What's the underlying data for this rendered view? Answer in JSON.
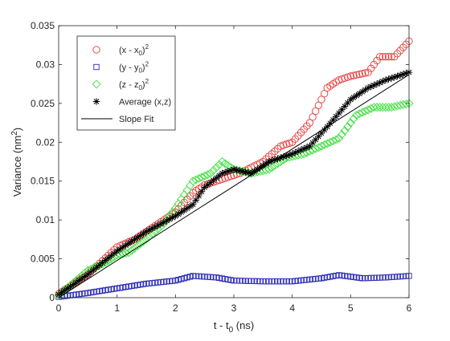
{
  "chart_data": {
    "type": "scatter",
    "xlabel_main": "t - t",
    "xlabel_sub": "0",
    "xlabel_unit": " (ns)",
    "ylabel_main": "Variance (nm",
    "ylabel_sup": "2",
    "ylabel_end": ")",
    "xlim": [
      0,
      6
    ],
    "ylim": [
      0,
      0.035
    ],
    "x_ticks": [
      0,
      1,
      2,
      3,
      4,
      5,
      6
    ],
    "x_tick_labels": [
      "0",
      "1",
      "2",
      "3",
      "4",
      "5",
      "6"
    ],
    "y_ticks": [
      0,
      0.005,
      0.01,
      0.015,
      0.02,
      0.025,
      0.03,
      0.035
    ],
    "y_tick_labels": [
      "0",
      "0.005",
      "0.01",
      "0.015",
      "0.02",
      "0.025",
      "0.03",
      "0.035"
    ],
    "grid": false,
    "legend_position": "top-left",
    "legend": [
      {
        "var": "x",
        "marker": "circle",
        "color": "#e83a3a",
        "pre": "(x - x",
        "sub": "0",
        "post": ")",
        "sup": "2",
        "plain": ""
      },
      {
        "var": "y",
        "marker": "square",
        "color": "#2a2ab5",
        "pre": "(y - y",
        "sub": "0",
        "post": ")",
        "sup": "2",
        "plain": ""
      },
      {
        "var": "z",
        "marker": "diamond",
        "color": "#3ae03a",
        "pre": "(z - z",
        "sub": "0",
        "post": ")",
        "sup": "2",
        "plain": ""
      },
      {
        "var": "avg",
        "marker": "asterisk",
        "color": "#000000",
        "pre": "",
        "sub": "",
        "post": "",
        "sup": "",
        "plain": "Average (x,z)"
      },
      {
        "var": "fit",
        "marker": "line",
        "color": "#000000",
        "pre": "",
        "sub": "",
        "post": "",
        "sup": "",
        "plain": "Slope Fit"
      }
    ],
    "series_knots": {
      "x": [
        [
          0,
          0.0005
        ],
        [
          0.5,
          0.003
        ],
        [
          1.0,
          0.0065
        ],
        [
          1.3,
          0.0075
        ],
        [
          1.6,
          0.009
        ],
        [
          2.0,
          0.011
        ],
        [
          2.3,
          0.0135
        ],
        [
          2.5,
          0.0145
        ],
        [
          2.7,
          0.015
        ],
        [
          2.9,
          0.0155
        ],
        [
          3.1,
          0.016
        ],
        [
          3.5,
          0.0175
        ],
        [
          3.8,
          0.0195
        ],
        [
          4.0,
          0.02
        ],
        [
          4.3,
          0.0225
        ],
        [
          4.6,
          0.027
        ],
        [
          4.8,
          0.028
        ],
        [
          5.0,
          0.0285
        ],
        [
          5.3,
          0.029
        ],
        [
          5.5,
          0.031
        ],
        [
          5.75,
          0.031
        ],
        [
          6.0,
          0.033
        ]
      ],
      "y": [
        [
          0,
          0.0001
        ],
        [
          0.5,
          0.0006
        ],
        [
          1.0,
          0.0012
        ],
        [
          1.5,
          0.0018
        ],
        [
          2.0,
          0.0022
        ],
        [
          2.3,
          0.0028
        ],
        [
          2.7,
          0.0026
        ],
        [
          3.0,
          0.0022
        ],
        [
          3.5,
          0.0021
        ],
        [
          4.0,
          0.0021
        ],
        [
          4.5,
          0.0025
        ],
        [
          4.8,
          0.0029
        ],
        [
          5.2,
          0.0025
        ],
        [
          5.6,
          0.0026
        ],
        [
          6.0,
          0.0028
        ]
      ],
      "z": [
        [
          0,
          0.0003
        ],
        [
          0.5,
          0.0035
        ],
        [
          0.8,
          0.0045
        ],
        [
          1.0,
          0.0055
        ],
        [
          1.2,
          0.0058
        ],
        [
          1.5,
          0.0075
        ],
        [
          1.8,
          0.0095
        ],
        [
          2.0,
          0.0115
        ],
        [
          2.3,
          0.015
        ],
        [
          2.6,
          0.016
        ],
        [
          2.8,
          0.0175
        ],
        [
          3.0,
          0.0165
        ],
        [
          3.3,
          0.016
        ],
        [
          3.6,
          0.0165
        ],
        [
          3.9,
          0.018
        ],
        [
          4.2,
          0.0185
        ],
        [
          4.5,
          0.0195
        ],
        [
          4.8,
          0.0205
        ],
        [
          5.1,
          0.0235
        ],
        [
          5.4,
          0.0245
        ],
        [
          5.7,
          0.0245
        ],
        [
          6.0,
          0.025
        ]
      ],
      "avg": [
        [
          0,
          0.0004
        ],
        [
          0.5,
          0.003
        ],
        [
          1.0,
          0.006
        ],
        [
          1.5,
          0.0085
        ],
        [
          2.0,
          0.0105
        ],
        [
          2.3,
          0.012
        ],
        [
          2.5,
          0.0142
        ],
        [
          2.8,
          0.016
        ],
        [
          3.0,
          0.0165
        ],
        [
          3.3,
          0.016
        ],
        [
          3.6,
          0.0175
        ],
        [
          4.0,
          0.0185
        ],
        [
          4.3,
          0.0195
        ],
        [
          4.6,
          0.022
        ],
        [
          5.0,
          0.0255
        ],
        [
          5.3,
          0.027
        ],
        [
          5.6,
          0.028
        ],
        [
          6.0,
          0.029
        ]
      ]
    },
    "slope_fit": [
      [
        0,
        0
      ],
      [
        6,
        0.0287
      ]
    ],
    "points_per_series": 121
  }
}
